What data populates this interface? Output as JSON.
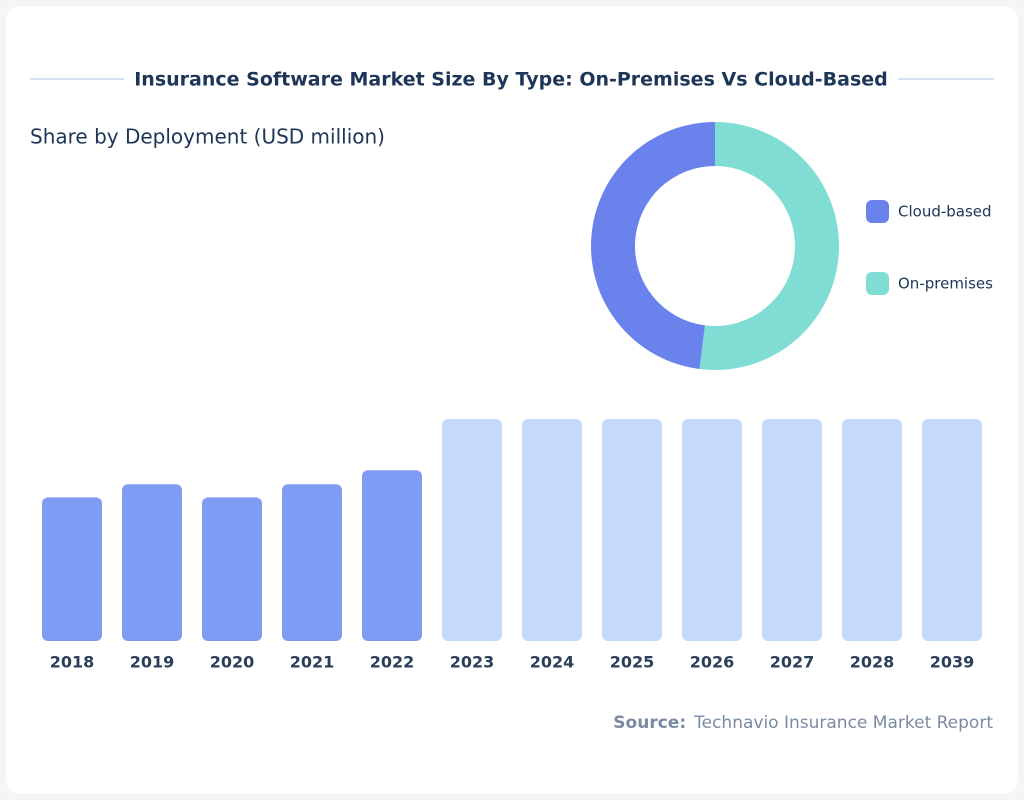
{
  "title": "Insurance Software Market Size By Type: On-Premises Vs Cloud-Based",
  "source_label": "Source:",
  "source": "Technavio Insurance Market Report",
  "chart_data": [
    {
      "type": "pie",
      "title": "Share by Deployment (USD million)",
      "categories": [
        "Cloud-based",
        "On-premises"
      ],
      "values": [
        48,
        52
      ],
      "colors": [
        "#6a82ec",
        "#80ddd3"
      ]
    },
    {
      "type": "bar",
      "categories": [
        "2018",
        "2019",
        "2020",
        "2021",
        "2022",
        "2023",
        "2024",
        "2025",
        "2026",
        "2027",
        "2028",
        "2039"
      ],
      "values": [
        143,
        156,
        143,
        156,
        170,
        221,
        221,
        221,
        221,
        221,
        221,
        221
      ],
      "colors": [
        "#7f9cf5",
        "#7f9cf5",
        "#7f9cf5",
        "#7f9cf5",
        "#7f9cf5",
        "#c5d9fd",
        "#c5d9fd",
        "#c5d9fd",
        "#c5d9fd",
        "#c5d9fd",
        "#c5d9fd",
        "#c5d9fd"
      ]
    }
  ]
}
